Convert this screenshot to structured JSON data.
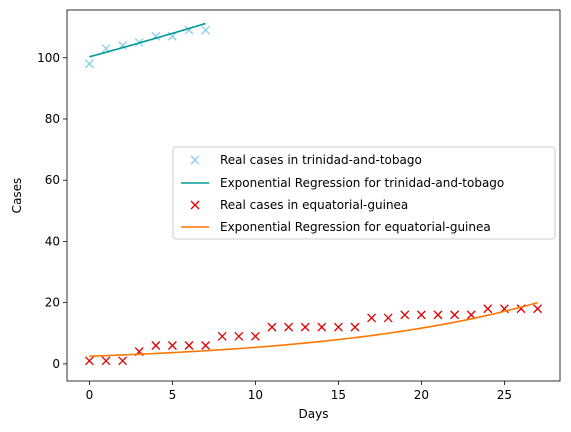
{
  "chart_data": {
    "type": "scatter",
    "title": "",
    "xlabel": "Days",
    "ylabel": "Cases",
    "xlim": [
      -1.35,
      28.35
    ],
    "ylim": [
      -5.6,
      115.6
    ],
    "xticks": [
      0,
      5,
      10,
      15,
      20,
      25
    ],
    "yticks": [
      0,
      20,
      40,
      60,
      80,
      100
    ],
    "grid": false,
    "legend_position": "center-right",
    "series": [
      {
        "name": "Real cases in trinidad-and-tobago",
        "kind": "marker",
        "marker": "x",
        "color": "#87CEEB",
        "x": [
          0,
          1,
          2,
          3,
          4,
          5,
          6,
          7
        ],
        "y": [
          98,
          103,
          104,
          105,
          107,
          107,
          109,
          109
        ]
      },
      {
        "name": "Exponential Regression for trinidad-and-tobago",
        "kind": "line",
        "color": "#009999",
        "x": [
          0,
          7
        ],
        "y": [
          100.3,
          111.2
        ],
        "growth_rate": 0.0148
      },
      {
        "name": "Real cases in equatorial-guinea",
        "kind": "marker",
        "marker": "x",
        "color": "#E00000",
        "x": [
          0,
          1,
          2,
          3,
          4,
          5,
          6,
          7,
          8,
          9,
          10,
          11,
          12,
          13,
          14,
          15,
          16,
          17,
          18,
          19,
          20,
          21,
          22,
          23,
          24,
          25,
          26,
          27
        ],
        "y": [
          1,
          1,
          1,
          4,
          6,
          6,
          6,
          6,
          9,
          9,
          9,
          12,
          12,
          12,
          12,
          12,
          12,
          15,
          15,
          16,
          16,
          16,
          16,
          16,
          18,
          18,
          18,
          18
        ]
      },
      {
        "name": "Exponential Regression for equatorial-guinea",
        "kind": "line",
        "color": "#FF7700",
        "x": [
          0,
          27
        ],
        "y": [
          2.5,
          20.0
        ],
        "growth_rate": 0.077
      }
    ]
  }
}
